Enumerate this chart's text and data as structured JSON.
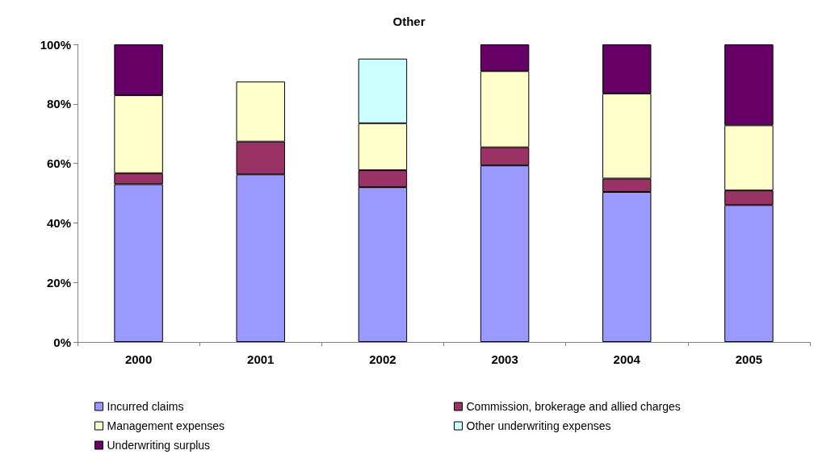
{
  "chart_data": {
    "type": "bar",
    "title": "Other",
    "stacked": true,
    "categories": [
      "2000",
      "2001",
      "2002",
      "2003",
      "2004",
      "2005"
    ],
    "series": [
      {
        "name": "Incurred claims",
        "color": "#9999ff",
        "values": [
          53,
          56.3,
          52,
          59.3,
          50.4,
          46
        ]
      },
      {
        "name": "Commission, brokerage and allied charges",
        "color": "#993366",
        "values": [
          3.7,
          11,
          5.7,
          6.1,
          4.5,
          4.9
        ]
      },
      {
        "name": "Management expenses",
        "color": "#ffffcc",
        "values": [
          26.2,
          20.2,
          15.8,
          25.6,
          28.6,
          21.9
        ]
      },
      {
        "name": "Other underwriting expenses",
        "color": "#ccffff",
        "values": [
          null,
          null,
          21.7,
          null,
          null,
          null
        ]
      },
      {
        "name": "Underwriting surplus",
        "color": "#660066",
        "values": [
          17.1,
          null,
          null,
          9,
          16.5,
          27.2
        ]
      }
    ],
    "ylim": [
      0,
      100
    ],
    "yticks": [
      {
        "value": 0,
        "label": "0%"
      },
      {
        "value": 20,
        "label": "20%"
      },
      {
        "value": 40,
        "label": "40%"
      },
      {
        "value": 60,
        "label": "60%"
      },
      {
        "value": 80,
        "label": "80%"
      },
      {
        "value": 100,
        "label": "100%"
      }
    ],
    "grid": false,
    "legend": "bottom"
  }
}
